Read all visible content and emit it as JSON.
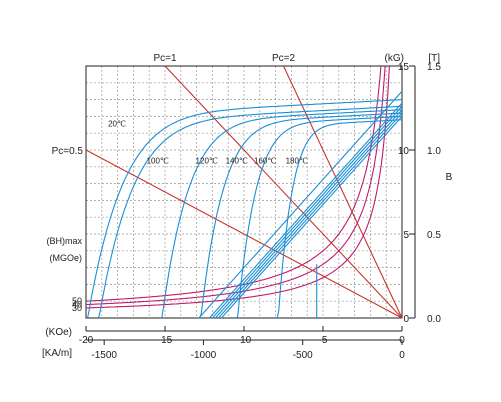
{
  "chart_data": {
    "type": "line",
    "title": "",
    "xlabel": "(KOe)",
    "xlabel_secondary": "[KA/m]",
    "ylabel": "B",
    "ylabel_kG": "(kG)",
    "ylabel_T": "[T]",
    "xlim": [
      -20,
      0
    ],
    "ylim": [
      0,
      15
    ],
    "x_ticks": [
      -20,
      -15,
      -10,
      -5,
      0
    ],
    "x_tick_labels": [
      "-20",
      "-15",
      "-10",
      "-5",
      "0"
    ],
    "x2_ticks": [
      -1500,
      -1000,
      -500,
      0
    ],
    "x2_tick_labels": [
      "-1500",
      "-1000",
      "-500",
      "0"
    ],
    "y_ticks_kG": [
      0,
      5,
      10,
      15
    ],
    "y_tick_labels_kG": [
      "0",
      "5",
      "10",
      "15"
    ],
    "y_ticks_T": [
      0.0,
      0.5,
      1.0,
      1.5
    ],
    "y_tick_labels_T": [
      "0.0",
      "0.5",
      "1.0",
      "1.5"
    ],
    "grid": true,
    "load_lines": [
      {
        "label": "Pc=0.5",
        "slope": 0.5
      },
      {
        "label": "Pc=1",
        "slope": 1
      },
      {
        "label": "Pc=2",
        "slope": 2
      }
    ],
    "energy_product": {
      "title": "(BH)max",
      "unit": "(MGOe)",
      "levels": [
        {
          "label": "50",
          "value": 50
        },
        {
          "label": "40",
          "value": 40
        },
        {
          "label": "30",
          "value": 30
        }
      ]
    },
    "temperature_curves": [
      {
        "label": "20℃",
        "Br": 13.0,
        "Hcj": 15.4
      },
      {
        "label": "100℃",
        "Br": 12.6,
        "Hcj": 14.9
      },
      {
        "label": "120℃",
        "Br": 12.4,
        "Hcj": 11.8
      },
      {
        "label": "140℃",
        "Br": 12.2,
        "Hcj": 9.9
      },
      {
        "label": "160℃",
        "Br": 12.0,
        "Hcj": 8.1
      },
      {
        "label": "180℃",
        "Br": 11.8,
        "Hcj": 6.1
      }
    ],
    "temperature_curve_extra_sharp_end": 5.4,
    "normal_curve_lines": [
      {
        "Br": 13.5,
        "mu": 1.05
      },
      {
        "Br": 12.8,
        "mu": 1.05
      },
      {
        "Br": 12.6,
        "mu": 1.05
      },
      {
        "Br": 12.4,
        "mu": 1.05
      },
      {
        "Br": 12.2,
        "mu": 1.05
      },
      {
        "Br": 12.0,
        "mu": 1.05
      }
    ],
    "colors": {
      "load_lines": "#c8332e",
      "energy_curves": "#c11d6a",
      "demagnetization": "#1a8fd6",
      "grid": "#9a9a9a",
      "axes": "#222222"
    }
  }
}
